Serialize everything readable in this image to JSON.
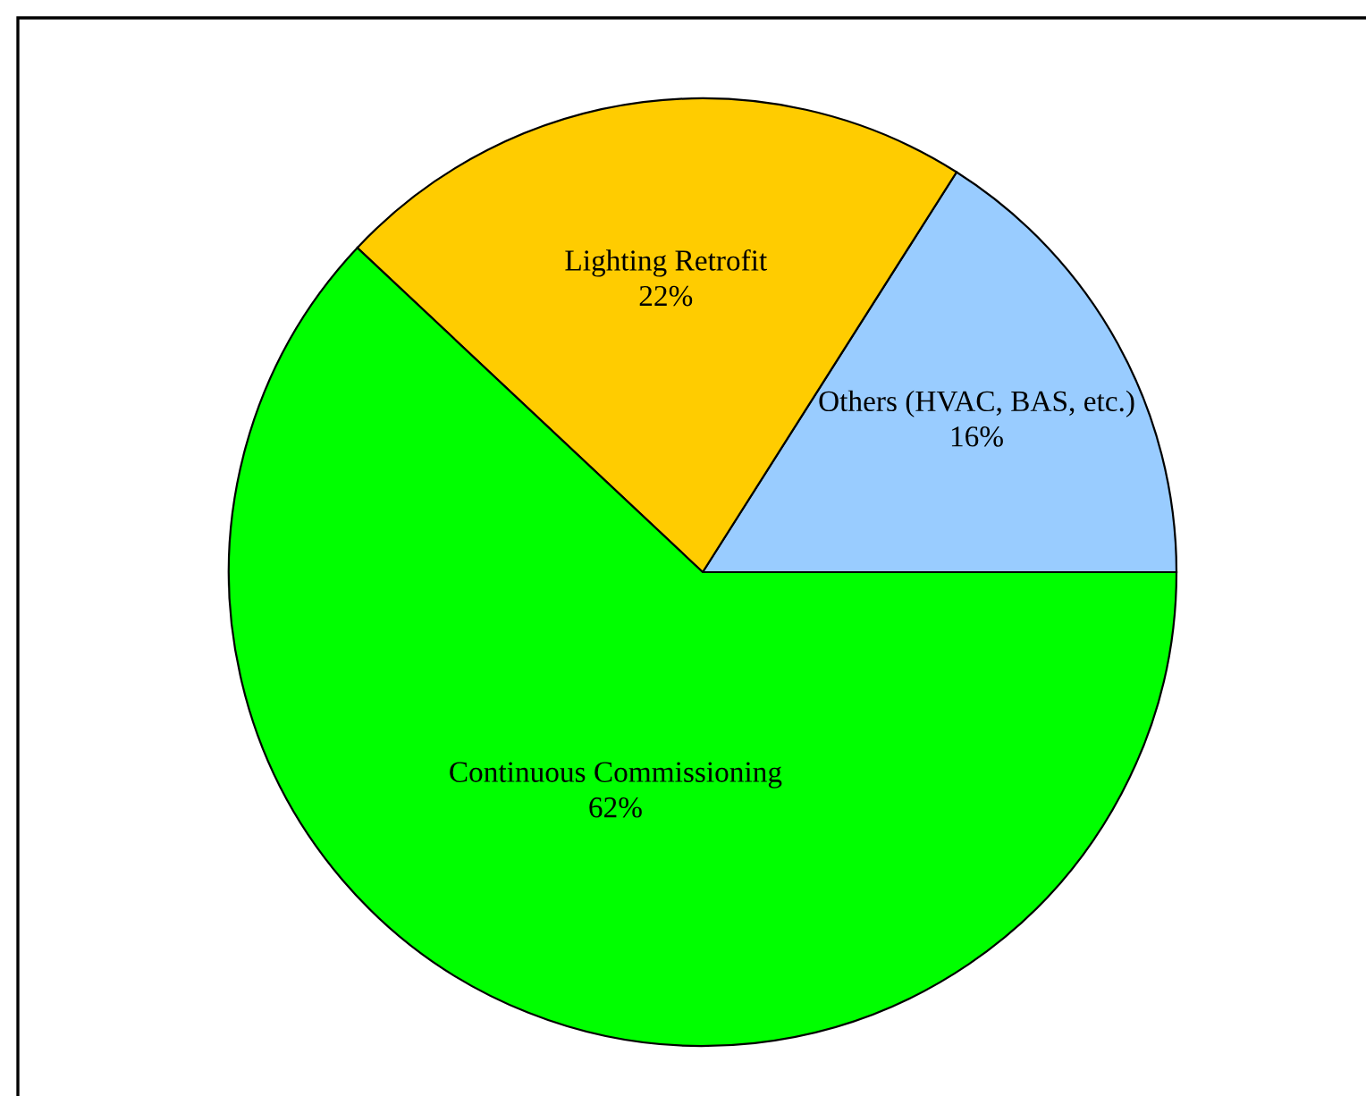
{
  "chart_data": {
    "type": "pie",
    "categories": [
      "Others (HVAC, BAS, etc.)",
      "Lighting Retrofit",
      "Continuous Commissioning"
    ],
    "values": [
      16,
      22,
      62
    ],
    "colors": [
      "#99ccff",
      "#ffcc00",
      "#00ff00"
    ],
    "value_labels": [
      "16%",
      "22%",
      "62%"
    ]
  }
}
